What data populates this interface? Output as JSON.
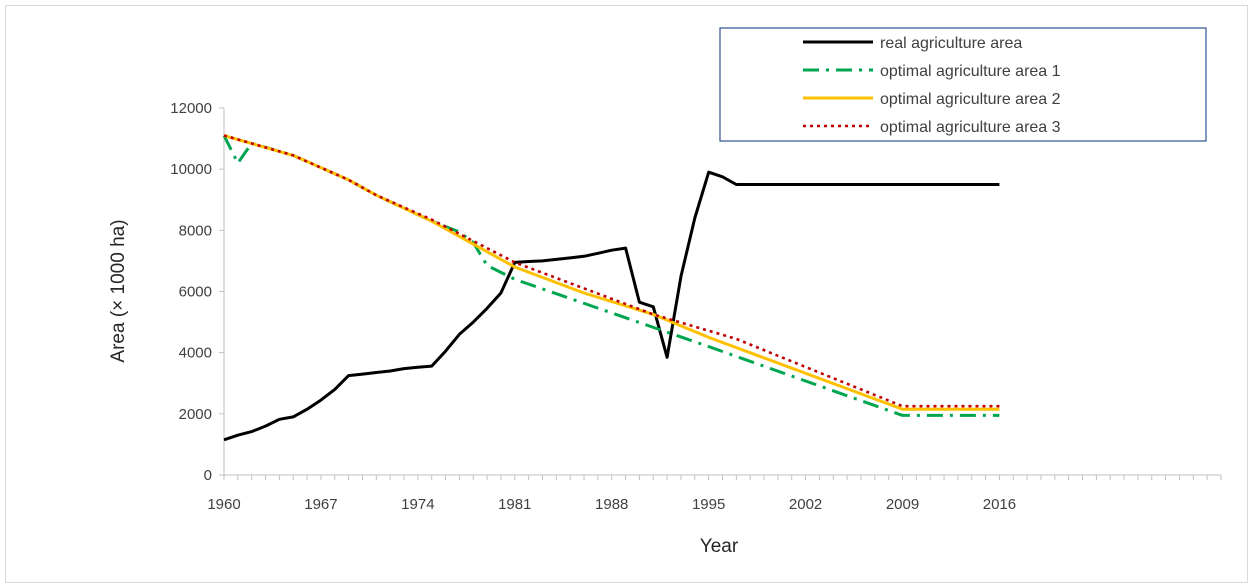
{
  "chart_data": {
    "type": "line",
    "title": "",
    "xlabel": "Year",
    "ylabel": "Area (× 1000 ha)",
    "xlim": [
      1960,
      2032
    ],
    "ylim": [
      0,
      12000
    ],
    "x_ticks": [
      1960,
      1967,
      1974,
      1981,
      1988,
      1995,
      2002,
      2009,
      2016
    ],
    "y_ticks": [
      0,
      2000,
      4000,
      6000,
      8000,
      10000,
      12000
    ],
    "grid": false,
    "legend_position": "top-right",
    "series": [
      {
        "name": "real agriculture area",
        "color": "#000000",
        "style": "solid",
        "points": [
          [
            1960,
            1150
          ],
          [
            1961,
            1300
          ],
          [
            1962,
            1420
          ],
          [
            1963,
            1600
          ],
          [
            1964,
            1820
          ],
          [
            1965,
            1900
          ],
          [
            1966,
            2150
          ],
          [
            1967,
            2450
          ],
          [
            1968,
            2800
          ],
          [
            1969,
            3250
          ],
          [
            1970,
            3300
          ],
          [
            1971,
            3350
          ],
          [
            1972,
            3400
          ],
          [
            1973,
            3480
          ],
          [
            1974,
            3520
          ],
          [
            1975,
            3560
          ],
          [
            1976,
            4050
          ],
          [
            1977,
            4600
          ],
          [
            1978,
            5000
          ],
          [
            1979,
            5450
          ],
          [
            1980,
            5950
          ],
          [
            1981,
            6950
          ],
          [
            1982,
            6980
          ],
          [
            1983,
            7000
          ],
          [
            1984,
            7050
          ],
          [
            1985,
            7100
          ],
          [
            1986,
            7150
          ],
          [
            1987,
            7250
          ],
          [
            1988,
            7350
          ],
          [
            1989,
            7420
          ],
          [
            1990,
            5650
          ],
          [
            1991,
            5500
          ],
          [
            1992,
            3850
          ],
          [
            1993,
            6500
          ],
          [
            1994,
            8400
          ],
          [
            1995,
            9900
          ],
          [
            1996,
            9750
          ],
          [
            1997,
            9500
          ],
          [
            2016,
            9500
          ]
        ]
      },
      {
        "name": "optimal agriculture area 1",
        "color": "#00a64f",
        "style": "dash-dot",
        "points": [
          [
            1960,
            11100
          ],
          [
            1961,
            10200
          ],
          [
            1962,
            10850
          ],
          [
            1965,
            10450
          ],
          [
            1969,
            9650
          ],
          [
            1971,
            9150
          ],
          [
            1975,
            8300
          ],
          [
            1977,
            7950
          ],
          [
            1978,
            7600
          ],
          [
            1979,
            6850
          ],
          [
            1981,
            6400
          ],
          [
            1995,
            4200
          ],
          [
            2009,
            1950
          ],
          [
            2016,
            1950
          ]
        ]
      },
      {
        "name": "optimal agriculture area 2",
        "color": "#ffc000",
        "style": "solid",
        "points": [
          [
            1960,
            11100
          ],
          [
            1965,
            10450
          ],
          [
            1969,
            9650
          ],
          [
            1971,
            9150
          ],
          [
            1975,
            8300
          ],
          [
            1981,
            6800
          ],
          [
            1986,
            5950
          ],
          [
            1991,
            5250
          ],
          [
            1995,
            4500
          ],
          [
            2009,
            2150
          ],
          [
            2016,
            2150
          ]
        ]
      },
      {
        "name": "optimal agriculture area 3",
        "color": "#c00000",
        "style": "dotted",
        "points": [
          [
            1960,
            11100
          ],
          [
            1965,
            10450
          ],
          [
            1969,
            9650
          ],
          [
            1971,
            9150
          ],
          [
            1975,
            8350
          ],
          [
            1981,
            6950
          ],
          [
            1991,
            5250
          ],
          [
            1997,
            4450
          ],
          [
            2009,
            2250
          ],
          [
            2016,
            2250
          ]
        ]
      }
    ]
  }
}
